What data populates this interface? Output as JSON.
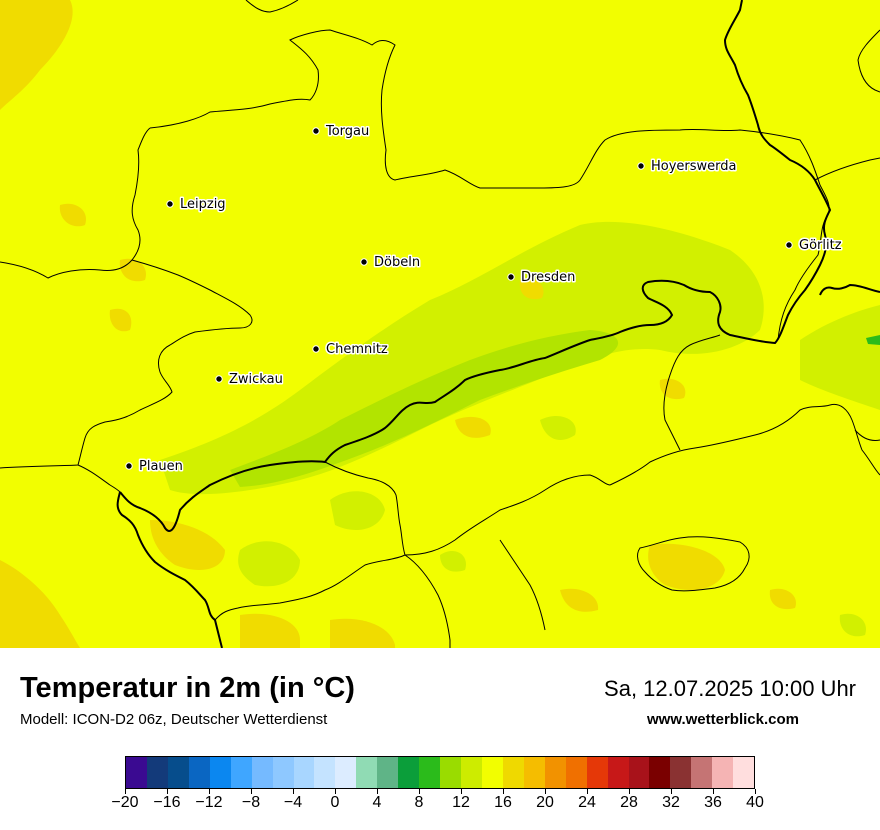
{
  "title": "Temperatur in 2m (in °C)",
  "model_info": "Modell: ICON-D2 06z, Deutscher Wetterdienst",
  "datetime": "Sa, 12.07.2025 10:00 Uhr",
  "website": "www.wetterblick.com",
  "map": {
    "background_color": "#f2fe00",
    "cities": [
      {
        "name": "Torgau"
      },
      {
        "name": "Hoyerswerda"
      },
      {
        "name": "Leipzig"
      },
      {
        "name": "Görlitz"
      },
      {
        "name": "Döbeln"
      },
      {
        "name": "Dresden"
      },
      {
        "name": "Chemnitz"
      },
      {
        "name": "Zwickau"
      },
      {
        "name": "Plauen"
      }
    ]
  },
  "colorbar": {
    "min": -20,
    "max": 40,
    "tick_labels": [
      "−20",
      "−16",
      "−12",
      "−8",
      "−4",
      "0",
      "4",
      "8",
      "12",
      "16",
      "20",
      "24",
      "28",
      "32",
      "36",
      "40"
    ],
    "colors": [
      "#3a0a91",
      "#133a7a",
      "#064d8c",
      "#0a66c2",
      "#0b87f0",
      "#3fa6ff",
      "#75baff",
      "#8ec8ff",
      "#a8d6ff",
      "#c4e3ff",
      "#dcecff",
      "#90dbb4",
      "#5fb487",
      "#0b9e3a",
      "#2bbb1b",
      "#9adc00",
      "#cdec00",
      "#f2fe00",
      "#efd900",
      "#f5bd00",
      "#f29200",
      "#f07000",
      "#e53808",
      "#c71818",
      "#a8121a",
      "#7a0000",
      "#8a3232",
      "#c57474",
      "#f5b4b4",
      "#ffdede"
    ]
  }
}
